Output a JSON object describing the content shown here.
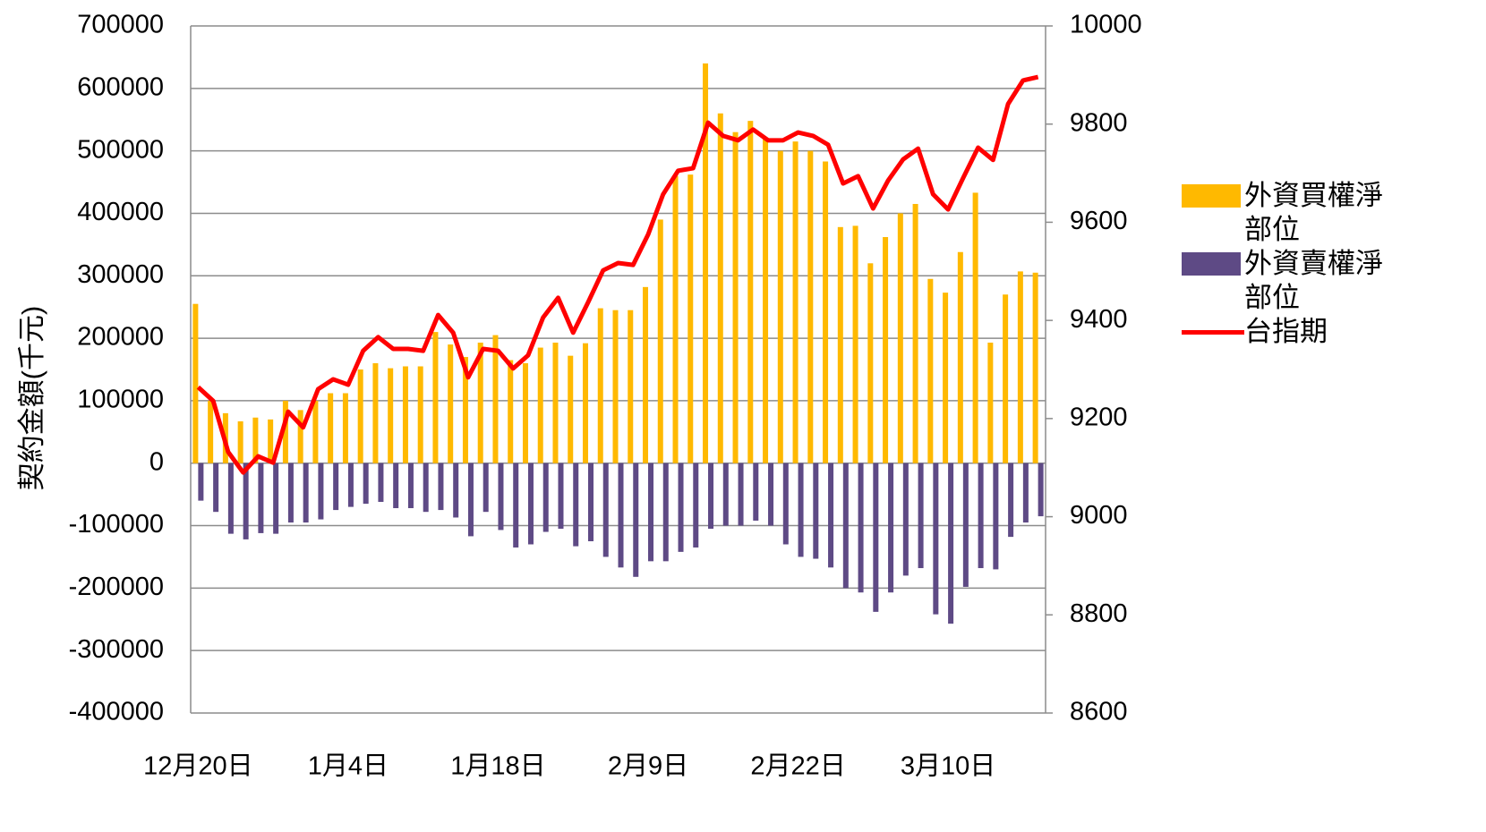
{
  "chart_data": {
    "type": "bar-line",
    "y_label": "契約金額(千元)",
    "categories": [
      "12月20日",
      null,
      null,
      null,
      null,
      null,
      null,
      null,
      null,
      null,
      "1月4日",
      null,
      null,
      null,
      null,
      null,
      null,
      null,
      null,
      null,
      "1月18日",
      null,
      null,
      null,
      null,
      null,
      null,
      null,
      null,
      null,
      "2月9日",
      null,
      null,
      null,
      null,
      null,
      null,
      null,
      null,
      null,
      "2月22日",
      null,
      null,
      null,
      null,
      null,
      null,
      null,
      null,
      null,
      "3月10日",
      null,
      null,
      null,
      null,
      null,
      null
    ],
    "series": [
      {
        "name": "外資買權淨部位",
        "type": "bar",
        "color": "#FFB900",
        "axis": "y",
        "values": [
          255000,
          100000,
          80000,
          67000,
          73000,
          70000,
          100000,
          85000,
          100000,
          112000,
          112000,
          150000,
          160000,
          152000,
          155000,
          155000,
          210000,
          190000,
          170000,
          193000,
          205000,
          165000,
          160000,
          185000,
          193000,
          172000,
          192000,
          248000,
          245000,
          245000,
          282000,
          390000,
          460000,
          462000,
          640000,
          560000,
          530000,
          548000,
          520000,
          500000,
          515000,
          500000,
          483000,
          378000,
          380000,
          320000,
          362000,
          400000,
          415000,
          295000,
          273000,
          338000,
          433000,
          193000,
          270000,
          307000,
          305000
        ]
      },
      {
        "name": "外資賣權淨部位",
        "type": "bar",
        "color": "#5E4A85",
        "axis": "y",
        "values": [
          -60000,
          -78000,
          -113000,
          -122000,
          -112000,
          -113000,
          -95000,
          -95000,
          -90000,
          -75000,
          -70000,
          -65000,
          -62000,
          -72000,
          -72000,
          -78000,
          -75000,
          -87000,
          -117000,
          -78000,
          -107000,
          -135000,
          -130000,
          -110000,
          -105000,
          -133000,
          -125000,
          -150000,
          -167000,
          -182000,
          -157000,
          -157000,
          -142000,
          -135000,
          -105000,
          -100000,
          -100000,
          -92000,
          -100000,
          -130000,
          -150000,
          -153000,
          -167000,
          -200000,
          -207000,
          -238000,
          -207000,
          -180000,
          -168000,
          -242000,
          -257000,
          -198000,
          -168000,
          -170000,
          -118000,
          -95000,
          -85000
        ]
      },
      {
        "name": "台指期",
        "type": "line",
        "color": "#FF0000",
        "axis": "y2",
        "values": [
          9264,
          9236,
          9132,
          9090,
          9123,
          9110,
          9214,
          9182,
          9260,
          9280,
          9269,
          9338,
          9366,
          9342,
          9342,
          9338,
          9411,
          9375,
          9284,
          9342,
          9338,
          9302,
          9329,
          9406,
          9446,
          9375,
          9437,
          9502,
          9517,
          9513,
          9575,
          9657,
          9705,
          9710,
          9803,
          9776,
          9767,
          9789,
          9767,
          9767,
          9783,
          9776,
          9758,
          9679,
          9694,
          9628,
          9685,
          9728,
          9750,
          9657,
          9626,
          9690,
          9752,
          9727,
          9841,
          9889,
          9896
        ]
      }
    ],
    "ylim": [
      -400000,
      700000
    ],
    "yticks": [
      -400000,
      -300000,
      -200000,
      -100000,
      0,
      100000,
      200000,
      300000,
      400000,
      500000,
      600000,
      700000
    ],
    "y2lim": [
      8600,
      10000
    ],
    "y2ticks": [
      8600,
      8800,
      9000,
      9200,
      9400,
      9600,
      9800,
      10000
    ],
    "grid": true,
    "legend": "right"
  }
}
